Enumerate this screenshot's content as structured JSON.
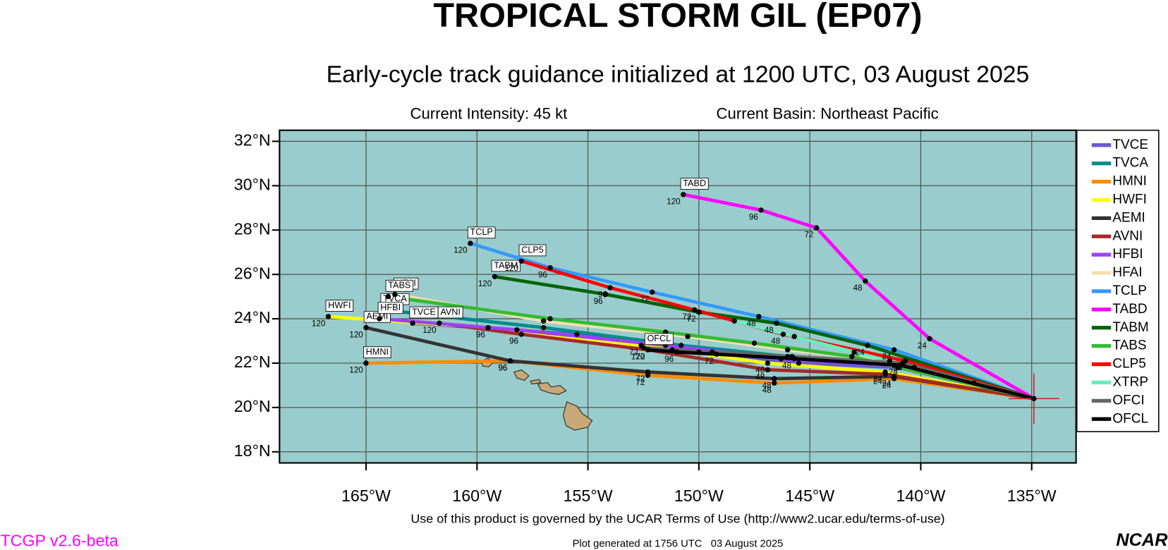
{
  "chart_data": {
    "type": "map",
    "title": "TROPICAL STORM GIL (EP07)",
    "subtitle": "Early-cycle track guidance initialized at 1200 UTC, 03 August 2025",
    "intensity": "Current Intensity: 45 kt",
    "basin": "Current Basin: Northeast Pacific",
    "xlim": [
      -168.9,
      -133.0
    ],
    "ylim": [
      17.5,
      32.5
    ],
    "xticks": [
      {
        "value": -165,
        "label": "165°W"
      },
      {
        "value": -160,
        "label": "160°W"
      },
      {
        "value": -155,
        "label": "155°W"
      },
      {
        "value": -150,
        "label": "150°W"
      },
      {
        "value": -145,
        "label": "145°W"
      },
      {
        "value": -140,
        "label": "140°W"
      },
      {
        "value": -135,
        "label": "135°W"
      }
    ],
    "yticks": [
      {
        "value": 18,
        "label": "18°N"
      },
      {
        "value": 20,
        "label": "20°N"
      },
      {
        "value": 22,
        "label": "22°N"
      },
      {
        "value": 24,
        "label": "24°N"
      },
      {
        "value": 26,
        "label": "26°N"
      },
      {
        "value": 28,
        "label": "28°N"
      },
      {
        "value": 30,
        "label": "30°N"
      },
      {
        "value": 32,
        "label": "32°N"
      }
    ],
    "grid": true,
    "forecast_hours": [
      24,
      48,
      72,
      96,
      120
    ],
    "series": [
      {
        "name": "TVCE",
        "color": "#6a5acd",
        "show_hours": false,
        "lon": [
          -134.9,
          -141.0,
          -145.5,
          -150.0,
          -155.5,
          -162.9
        ],
        "lat": [
          20.4,
          21.8,
          22.0,
          22.5,
          23.3,
          23.8
        ]
      },
      {
        "name": "TVCA",
        "color": "#008b8b",
        "show_hours": false,
        "lon": [
          -134.9,
          -141.2,
          -146.0,
          -150.8,
          -157.0,
          -164.2
        ],
        "lat": [
          20.4,
          21.9,
          22.3,
          22.8,
          23.6,
          24.4
        ]
      },
      {
        "name": "HMNI",
        "color": "#ff8c00",
        "show_hours": true,
        "lon": [
          -134.9,
          -141.2,
          -146.6,
          -152.3,
          -158.5,
          -165.0
        ],
        "lat": [
          20.4,
          21.3,
          21.1,
          21.45,
          22.1,
          22.0
        ]
      },
      {
        "name": "HWFI",
        "color": "#ffff00",
        "show_hours": true,
        "lon": [
          -134.9,
          -141.6,
          -146.9,
          -152.6,
          -159.5,
          -166.7
        ],
        "lat": [
          20.4,
          21.6,
          22.0,
          22.8,
          23.6,
          24.1
        ]
      },
      {
        "name": "AEMI",
        "color": "#333333",
        "show_hours": true,
        "lon": [
          -134.9,
          -141.2,
          -146.6,
          -152.3,
          -158.5,
          -165.0
        ],
        "lat": [
          20.4,
          21.4,
          21.3,
          21.6,
          22.1,
          23.6
        ]
      },
      {
        "name": "AVNI",
        "color": "#a52a2a",
        "show_hours": true,
        "lon": [
          -134.9,
          -141.6,
          -146.9,
          -152.3,
          -158.0,
          -161.7
        ],
        "lat": [
          20.4,
          21.5,
          21.7,
          22.6,
          23.3,
          23.8
        ]
      },
      {
        "name": "HFBI",
        "color": "#a040ff",
        "show_hours": false,
        "lon": [
          -134.9,
          -141.0,
          -146.3,
          -151.5,
          -158.2,
          -164.4
        ],
        "lat": [
          20.4,
          21.9,
          22.2,
          22.8,
          23.5,
          24.0
        ]
      },
      {
        "name": "HFAI",
        "color": "#f5deb3",
        "show_hours": false,
        "lon": [
          -134.9,
          -141.4,
          -146.0,
          -150.5,
          -157.0,
          -163.7
        ],
        "lat": [
          20.4,
          22.1,
          22.6,
          23.2,
          23.9,
          25.1
        ]
      },
      {
        "name": "TCLP",
        "color": "#3399ff",
        "show_hours": true,
        "lon": [
          -134.9,
          -141.2,
          -147.3,
          -152.1,
          -156.7,
          -160.3
        ],
        "lat": [
          20.4,
          22.6,
          24.1,
          25.2,
          26.3,
          27.4
        ]
      },
      {
        "name": "TABD",
        "color": "#ff00ff",
        "show_hours": true,
        "lon": [
          -134.9,
          -139.6,
          -142.5,
          -144.7,
          -147.2,
          -150.7
        ],
        "lat": [
          20.4,
          23.1,
          25.7,
          28.1,
          28.9,
          29.6
        ]
      },
      {
        "name": "TABM",
        "color": "#006400",
        "show_hours": true,
        "lon": [
          -134.9,
          -142.4,
          -146.5,
          -150.0,
          -154.2,
          -159.2
        ],
        "lat": [
          20.4,
          22.8,
          23.8,
          24.3,
          25.1,
          25.9
        ]
      },
      {
        "name": "TABS",
        "color": "#33bb33",
        "show_hours": false,
        "lon": [
          -134.9,
          -143.1,
          -147.5,
          -151.5,
          -156.7,
          -164.0
        ],
        "lat": [
          20.4,
          22.3,
          22.9,
          23.4,
          24.0,
          25.0
        ]
      },
      {
        "name": "CLP5",
        "color": "#ff0000",
        "show_hours": true,
        "lon": [
          -134.9,
          -140.7,
          -146.2,
          -150.2,
          -154.0,
          -158.0
        ],
        "lat": [
          20.4,
          22.1,
          23.3,
          24.4,
          25.4,
          26.6
        ]
      },
      {
        "name": "XTRP",
        "color": "#66eebb",
        "show_hours": false,
        "lon": [
          -134.9,
          -137.6,
          -140.3,
          -143.0,
          -145.7,
          -148.4
        ],
        "lat": [
          20.4,
          21.1,
          21.8,
          22.5,
          23.2,
          23.9
        ]
      },
      {
        "name": "OFCI",
        "color": "#666666",
        "show_hours": false,
        "lon": [
          -134.9,
          -140.8,
          -145.8,
          -149.4,
          -151.2,
          -152.5
        ],
        "lat": [
          20.4,
          22.0,
          22.3,
          22.5,
          22.6,
          22.7
        ]
      },
      {
        "name": "OFCL",
        "color": "#000000",
        "show_hours": true,
        "lon": [
          -134.9,
          -140.9,
          -145.7,
          -149.2,
          -151.0,
          -152.3
        ],
        "lat": [
          20.4,
          21.9,
          22.2,
          22.4,
          22.5,
          22.6
        ]
      }
    ]
  },
  "footer": {
    "terms": "Use of this product is governed by the UCAR Terms of Use (http://www2.ucar.edu/terms-of-use)",
    "generated": "Plot generated at 1756 UTC   03 August 2025",
    "version": "TCGP v2.6-beta",
    "logo": "NCAR"
  }
}
